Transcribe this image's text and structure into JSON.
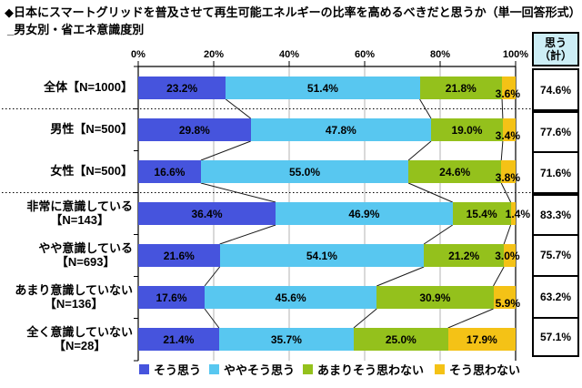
{
  "title": "◆日本にスマートグリッドを普及させて再生可能エネルギーの比率を高めるべきだと思うか（単一回答形式）",
  "subtitle": "_男女別・省エネ意識度別",
  "summary_column": {
    "header_line1": "思う",
    "header_line2": "（計）"
  },
  "legend": [
    {
      "name": "agree",
      "label": "そう思う",
      "color": "#4654dd"
    },
    {
      "name": "somewhat-agree",
      "label": "ややそう思う",
      "color": "#58c7f0"
    },
    {
      "name": "somewhat-disagree",
      "label": "あまりそう思わない",
      "color": "#94c11c"
    },
    {
      "name": "disagree",
      "label": "そう思わない",
      "color": "#f4c216"
    }
  ],
  "chart_data": {
    "type": "bar",
    "subtype": "horizontal_stacked_100_percent",
    "title": "日本にスマートグリッドを普及させて再生可能エネルギーの比率を高めるべきだと思うか",
    "x_ticks": [
      "0%",
      "20%",
      "40%",
      "60%",
      "80%",
      "100%"
    ],
    "xlim": [
      0,
      100
    ],
    "grid": true,
    "legend_position": "bottom",
    "series_names": [
      "そう思う",
      "ややそう思う",
      "あまりそう思わない",
      "そう思わない"
    ],
    "series_keys": [
      "agree",
      "somewhat-agree",
      "somewhat-disagree",
      "disagree"
    ],
    "series_colors": [
      "#4654dd",
      "#58c7f0",
      "#94c11c",
      "#f4c216"
    ],
    "summary_header": "思う（計）",
    "rows": [
      {
        "label_lines": [
          "全体【N=1000】"
        ],
        "values": [
          23.2,
          51.4,
          21.8,
          3.6
        ],
        "agree_total": "74.6%"
      },
      {
        "label_lines": [
          "男性【N=500】"
        ],
        "values": [
          29.8,
          47.8,
          19.0,
          3.4
        ],
        "agree_total": "77.6%"
      },
      {
        "label_lines": [
          "女性【N=500】"
        ],
        "values": [
          16.6,
          55.0,
          24.6,
          3.8
        ],
        "agree_total": "71.6%"
      },
      {
        "label_lines": [
          "非常に意識している",
          "【N=143】"
        ],
        "values": [
          36.4,
          46.9,
          15.4,
          1.4
        ],
        "agree_total": "83.3%"
      },
      {
        "label_lines": [
          "やや意識している",
          "【N=693】"
        ],
        "values": [
          21.6,
          54.1,
          21.2,
          3.0
        ],
        "agree_total": "75.7%"
      },
      {
        "label_lines": [
          "あまり意識していない",
          "【N=136】"
        ],
        "values": [
          17.6,
          45.6,
          30.9,
          5.9
        ],
        "agree_total": "63.2%"
      },
      {
        "label_lines": [
          "全く意識していない",
          "【N=28】"
        ],
        "values": [
          21.4,
          35.7,
          25.0,
          17.9
        ],
        "agree_total": "57.1%"
      }
    ],
    "group_separators_after_rows": [
      0,
      2
    ],
    "last_segment_label_mode": [
      "low",
      "low",
      "low",
      "mid-far",
      "mid",
      "low",
      "center"
    ],
    "colors": {
      "grid": "#b3b3b3",
      "axis": "#000000",
      "connector": "#1a1a1a",
      "summary_header_bg": "#cdeef6"
    }
  }
}
